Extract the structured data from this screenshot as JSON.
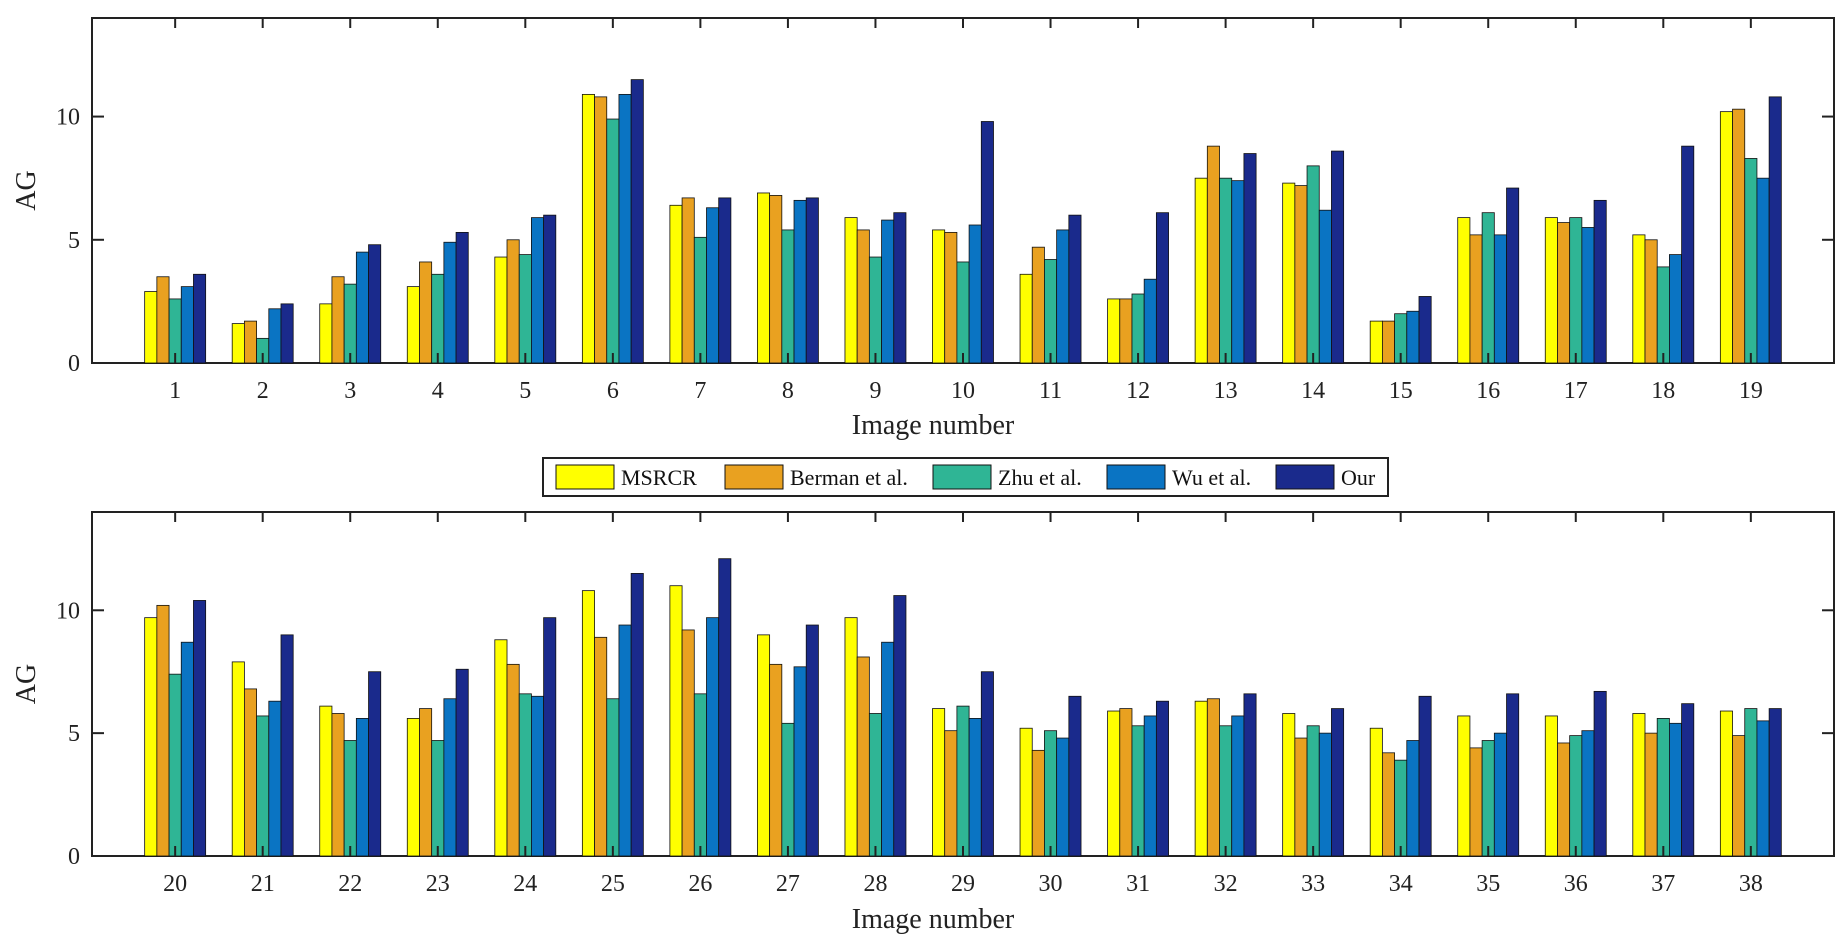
{
  "colors": {
    "MSRCR": "#ffff00",
    "Berman et al.": "#e9a120",
    "Zhu et al.": "#2fb595",
    "Wu et al.": "#0a74c3",
    "Our": "#1a2a8c"
  },
  "legend": [
    "MSRCR",
    "Berman et al.",
    "Zhu et al.",
    "Wu et al.",
    "Our"
  ],
  "chart_data": [
    {
      "type": "bar",
      "xlabel": "Image number",
      "ylabel": "AG",
      "ylim": [
        0,
        14
      ],
      "yticks": [
        0,
        5,
        10
      ],
      "categories": [
        "1",
        "2",
        "3",
        "4",
        "5",
        "6",
        "7",
        "8",
        "9",
        "10",
        "11",
        "12",
        "13",
        "14",
        "15",
        "16",
        "17",
        "18",
        "19"
      ],
      "series": [
        {
          "name": "MSRCR",
          "values": [
            2.9,
            1.6,
            2.4,
            3.1,
            4.3,
            10.9,
            6.4,
            6.9,
            5.9,
            5.4,
            3.6,
            2.6,
            7.5,
            7.3,
            1.7,
            5.9,
            5.9,
            5.2,
            10.2
          ]
        },
        {
          "name": "Berman et al.",
          "values": [
            3.5,
            1.7,
            3.5,
            4.1,
            5.0,
            10.8,
            6.7,
            6.8,
            5.4,
            5.3,
            4.7,
            2.6,
            8.8,
            7.2,
            1.7,
            5.2,
            5.7,
            5.0,
            10.3
          ]
        },
        {
          "name": "Zhu et al.",
          "values": [
            2.6,
            1.0,
            3.2,
            3.6,
            4.4,
            9.9,
            5.1,
            5.4,
            4.3,
            4.1,
            4.2,
            2.8,
            7.5,
            8.0,
            2.0,
            6.1,
            5.9,
            3.9,
            8.3
          ]
        },
        {
          "name": "Wu et al.",
          "values": [
            3.1,
            2.2,
            4.5,
            4.9,
            5.9,
            10.9,
            6.3,
            6.6,
            5.8,
            5.6,
            5.4,
            3.4,
            7.4,
            6.2,
            2.1,
            5.2,
            5.5,
            4.4,
            7.5
          ]
        },
        {
          "name": "Our",
          "values": [
            3.6,
            2.4,
            4.8,
            5.3,
            6.0,
            11.5,
            6.7,
            6.7,
            6.1,
            9.8,
            6.0,
            6.1,
            8.5,
            8.6,
            2.7,
            7.1,
            6.6,
            8.8,
            10.8
          ]
        }
      ]
    },
    {
      "type": "bar",
      "xlabel": "Image number",
      "ylabel": "AG",
      "ylim": [
        0,
        14
      ],
      "yticks": [
        0,
        5,
        10
      ],
      "categories": [
        "20",
        "21",
        "22",
        "23",
        "24",
        "25",
        "26",
        "27",
        "28",
        "29",
        "30",
        "31",
        "32",
        "33",
        "34",
        "35",
        "36",
        "37",
        "38"
      ],
      "series": [
        {
          "name": "MSRCR",
          "values": [
            9.7,
            7.9,
            6.1,
            5.6,
            8.8,
            10.8,
            11.0,
            9.0,
            9.7,
            6.0,
            5.2,
            5.9,
            6.3,
            5.8,
            5.2,
            5.7,
            5.7,
            5.8,
            5.9
          ]
        },
        {
          "name": "Berman et al.",
          "values": [
            10.2,
            6.8,
            5.8,
            6.0,
            7.8,
            8.9,
            9.2,
            7.8,
            8.1,
            5.1,
            4.3,
            6.0,
            6.4,
            4.8,
            4.2,
            4.4,
            4.6,
            5.0,
            4.9
          ]
        },
        {
          "name": "Zhu et al.",
          "values": [
            7.4,
            5.7,
            4.7,
            4.7,
            6.6,
            6.4,
            6.6,
            5.4,
            5.8,
            6.1,
            5.1,
            5.3,
            5.3,
            5.3,
            3.9,
            4.7,
            4.9,
            5.6,
            6.0
          ]
        },
        {
          "name": "Wu et al.",
          "values": [
            8.7,
            6.3,
            5.6,
            6.4,
            6.5,
            9.4,
            9.7,
            7.7,
            8.7,
            5.6,
            4.8,
            5.7,
            5.7,
            5.0,
            4.7,
            5.0,
            5.1,
            5.4,
            5.5
          ]
        },
        {
          "name": "Our",
          "values": [
            10.4,
            9.0,
            7.5,
            7.6,
            9.7,
            11.5,
            12.1,
            9.4,
            10.6,
            7.5,
            6.5,
            6.3,
            6.6,
            6.0,
            6.5,
            6.6,
            6.7,
            6.2,
            6.0
          ]
        }
      ]
    }
  ]
}
